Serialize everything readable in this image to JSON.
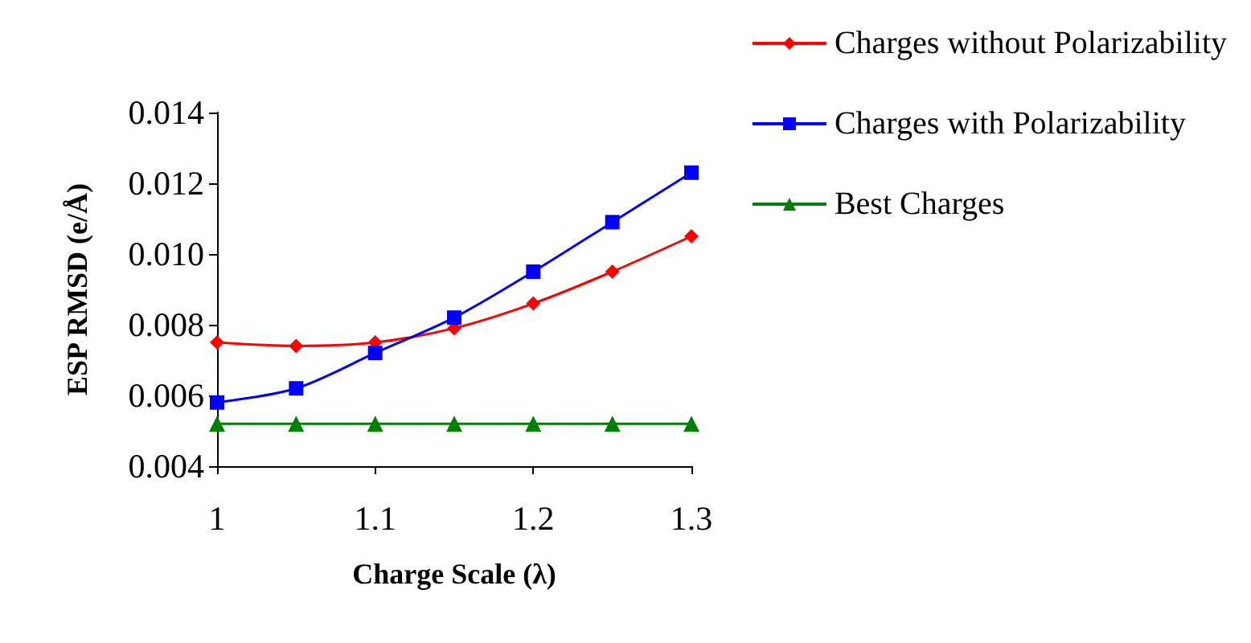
{
  "chart_data": {
    "type": "line",
    "xlabel": "Charge Scale (λ)",
    "ylabel": "ESP RMSD (e/Å)",
    "x": [
      1,
      1.05,
      1.1,
      1.15,
      1.2,
      1.25,
      1.3
    ],
    "series": [
      {
        "name": "Charges without Polarizability",
        "color": "#ff0000",
        "marker": "diamond",
        "values": [
          0.0075,
          0.0074,
          0.0075,
          0.0079,
          0.0086,
          0.0095,
          0.0105
        ]
      },
      {
        "name": "Charges with Polarizability",
        "color": "#0000ff",
        "marker": "square",
        "values": [
          0.0058,
          0.0062,
          0.0072,
          0.0082,
          0.0095,
          0.0109,
          0.0123
        ]
      },
      {
        "name": "Best Charges",
        "color": "#008000",
        "marker": "triangle",
        "values": [
          0.0052,
          0.0052,
          0.0052,
          0.0052,
          0.0052,
          0.0052,
          0.0052
        ]
      }
    ],
    "xlim": [
      1,
      1.3
    ],
    "xticks": [
      1,
      1.1,
      1.2,
      1.3
    ],
    "ylim": [
      0.004,
      0.014
    ],
    "yticks": [
      {
        "value": 0.004,
        "label": "0.004"
      },
      {
        "value": 0.006,
        "label": "0.006"
      },
      {
        "value": 0.008,
        "label": "0.008"
      },
      {
        "value": 0.01,
        "label": "0.010"
      },
      {
        "value": 0.012,
        "label": "0.012"
      },
      {
        "value": 0.014,
        "label": "0.014"
      }
    ],
    "grid": false,
    "legend": "top right",
    "line_style": "solid"
  }
}
